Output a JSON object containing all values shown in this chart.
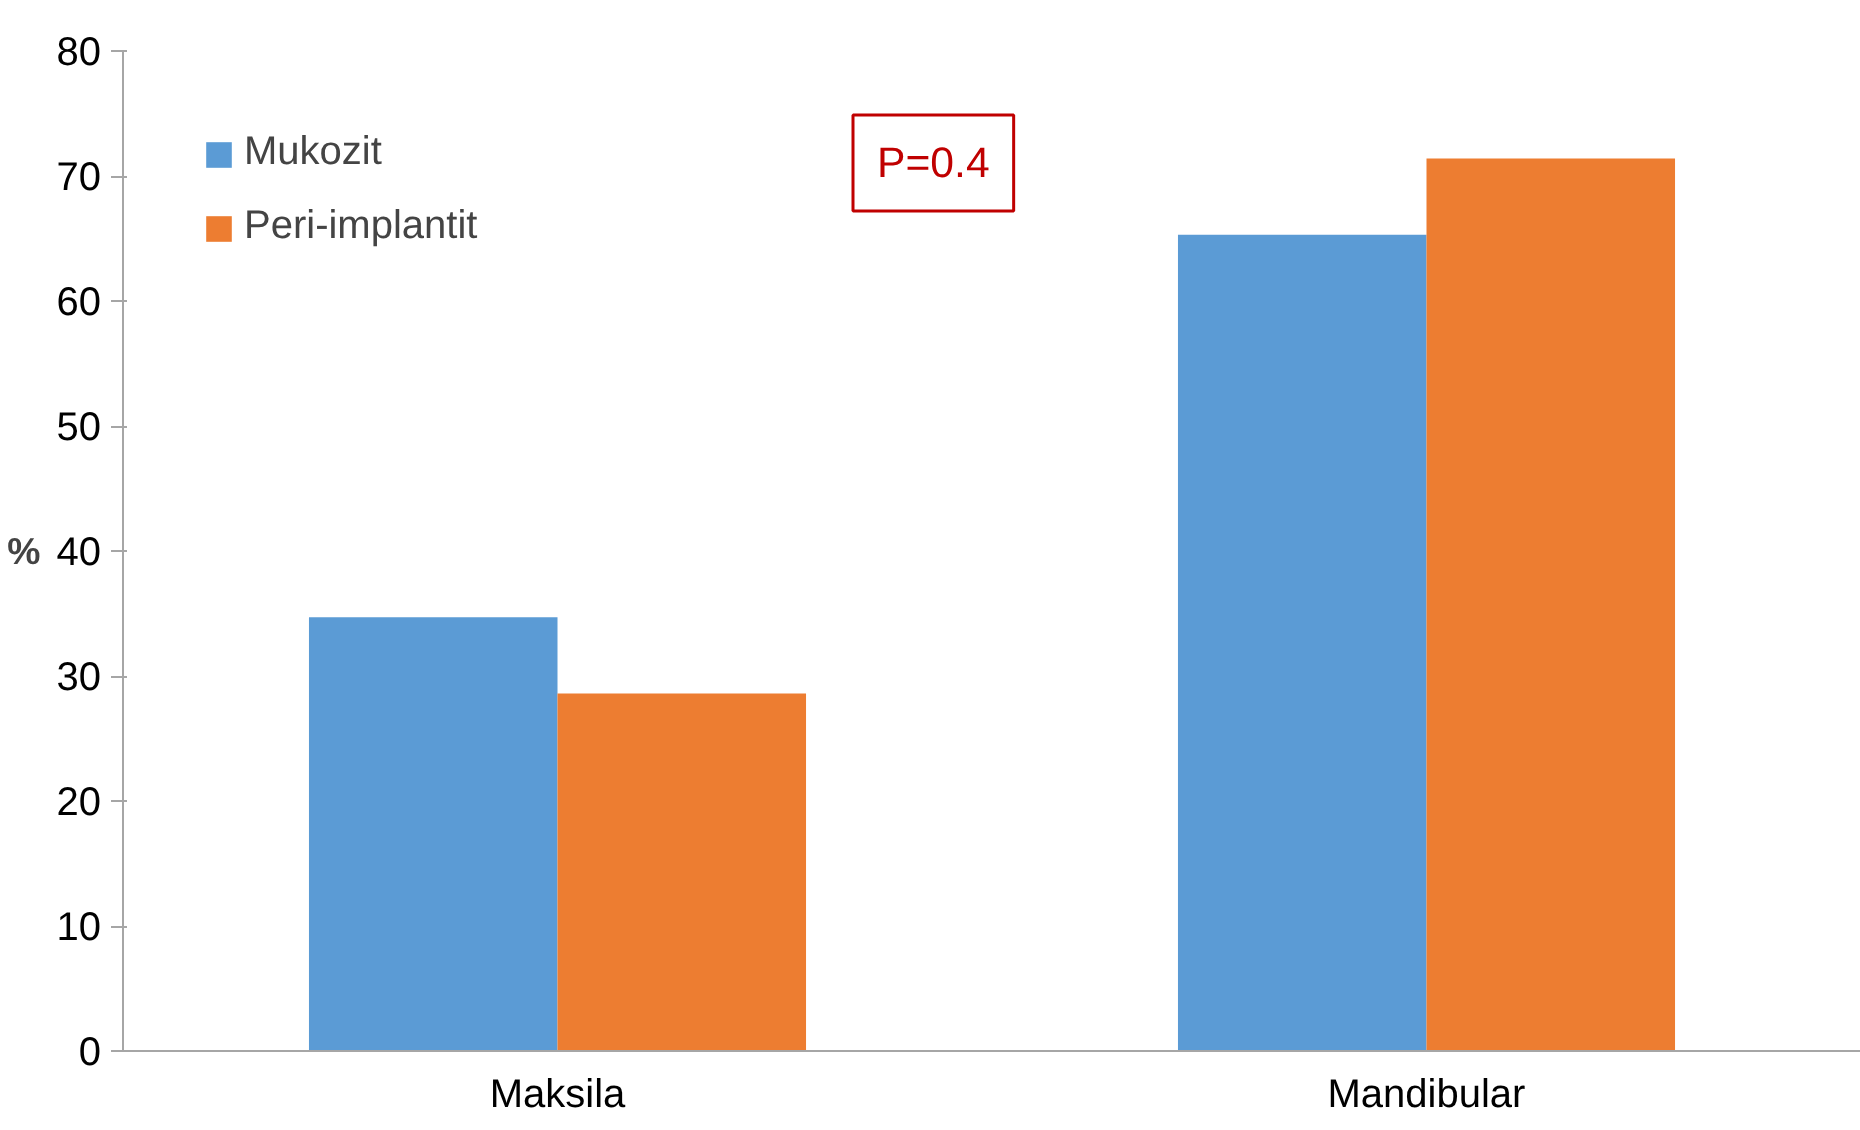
{
  "chart_data": {
    "type": "bar",
    "ylabel": "%",
    "categories": [
      "Maksila",
      "Mandibular"
    ],
    "series": [
      {
        "name": "Mukozit",
        "color": "#5b9bd5",
        "values": [
          34.7,
          65.3
        ]
      },
      {
        "name": "Peri-implantit",
        "color": "#ed7d31",
        "values": [
          28.6,
          71.4
        ]
      }
    ],
    "ylim": [
      0,
      80
    ],
    "yticks": [
      0,
      10,
      20,
      30,
      40,
      50,
      60,
      70,
      80
    ],
    "grid": false,
    "legend": "top left",
    "annotations": [
      "P=0.4"
    ]
  }
}
